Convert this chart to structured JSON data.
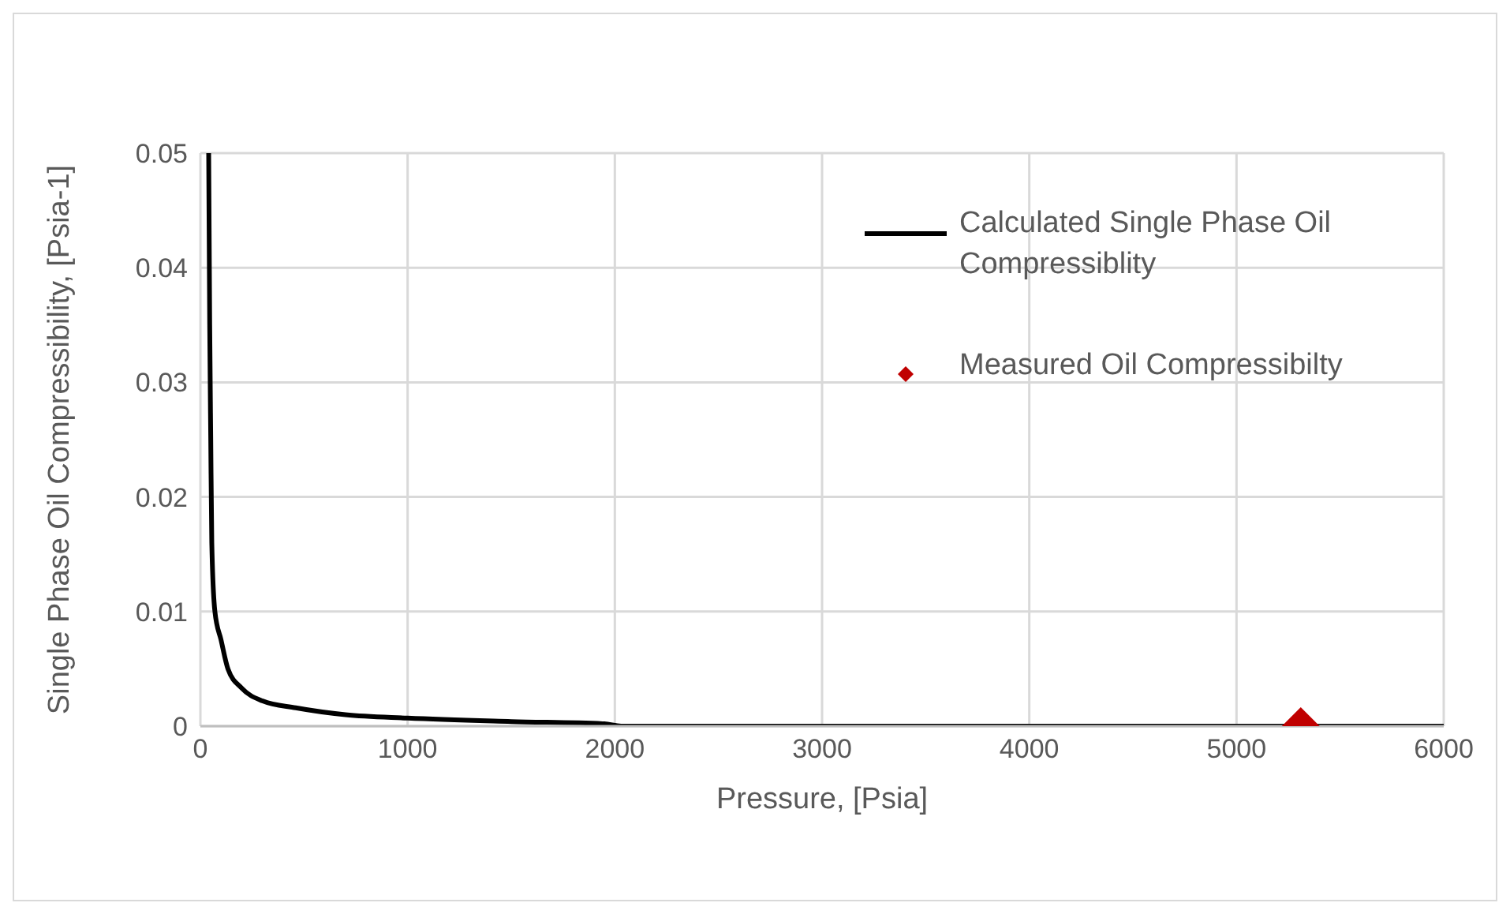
{
  "chart_data": {
    "type": "line",
    "xlabel": "Pressure, [Psia]",
    "ylabel": "Single Phase Oil Compressibility, [Psia-1]",
    "xlim": [
      0,
      6000
    ],
    "xticks": [
      0,
      1000,
      2000,
      3000,
      4000,
      5000,
      6000
    ],
    "ylim": [
      0,
      0.05
    ],
    "yticks": [
      0,
      0.01,
      0.02,
      0.03,
      0.04,
      0.05
    ],
    "grid": true,
    "legend": "top right",
    "series": [
      {
        "name": "Calculated Single Phase Oil Compressiblity",
        "color": "#000000",
        "marker": "none",
        "x": [
          40,
          45,
          50,
          55,
          70,
          100,
          133,
          200,
          300,
          460,
          700,
          1000,
          1500,
          1950,
          2030,
          6000
        ],
        "values": [
          0.05,
          0.035,
          0.025,
          0.016,
          0.01,
          0.0075,
          0.005,
          0.0033,
          0.0022,
          0.0016,
          0.001,
          0.0007,
          0.0004,
          0.0002,
          0,
          0
        ]
      },
      {
        "name": "Measured Oil Compressibilty",
        "type": "scatter",
        "color": "#c00000",
        "marker": "diamond",
        "x": [
          5310
        ],
        "values": [
          0
        ]
      }
    ]
  }
}
